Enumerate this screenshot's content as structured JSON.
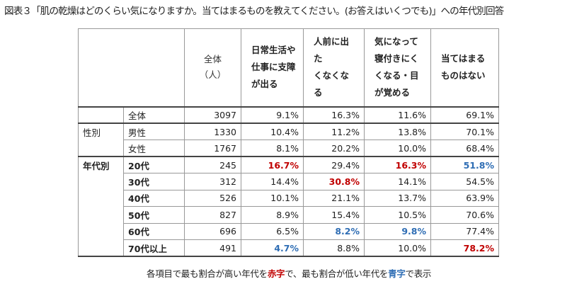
{
  "title": "図表３「肌の乾燥はどのくらい気になりますか。当てはまるものを教えてください。(お答えはいくつでも)」への年代別回答",
  "header": {
    "total_label": "全体\n（人）",
    "columns": [
      "日常生活や\n仕事に支障\nが出る",
      "人前に出た\nくなくなる",
      "気になって\n寝付きにく\nくなる・目\nが覚める",
      "当てはまる\nものはない"
    ]
  },
  "rows": [
    {
      "group": "",
      "label": "全体",
      "bold": false,
      "total": "3097",
      "values": [
        "9.1%",
        "16.3%",
        "11.6%",
        "69.1%"
      ],
      "hl": [
        "",
        "",
        "",
        ""
      ]
    },
    {
      "group": "性別",
      "label": "男性",
      "bold": false,
      "total": "1330",
      "values": [
        "10.4%",
        "11.2%",
        "13.8%",
        "70.1%"
      ],
      "hl": [
        "",
        "",
        "",
        ""
      ]
    },
    {
      "group": "",
      "label": "女性",
      "bold": false,
      "total": "1767",
      "values": [
        "8.1%",
        "20.2%",
        "10.0%",
        "68.4%"
      ],
      "hl": [
        "",
        "",
        "",
        ""
      ]
    },
    {
      "group": "年代別",
      "label": "20代",
      "bold": true,
      "total": "245",
      "values": [
        "16.7%",
        "29.4%",
        "16.3%",
        "51.8%"
      ],
      "hl": [
        "red",
        "",
        "red",
        "blue"
      ]
    },
    {
      "group": "",
      "label": "30代",
      "bold": true,
      "total": "312",
      "values": [
        "14.4%",
        "30.8%",
        "14.1%",
        "54.5%"
      ],
      "hl": [
        "",
        "red",
        "",
        ""
      ]
    },
    {
      "group": "",
      "label": "40代",
      "bold": true,
      "total": "526",
      "values": [
        "10.1%",
        "21.1%",
        "13.7%",
        "63.9%"
      ],
      "hl": [
        "",
        "",
        "",
        ""
      ]
    },
    {
      "group": "",
      "label": "50代",
      "bold": true,
      "total": "827",
      "values": [
        "8.9%",
        "15.4%",
        "10.5%",
        "70.6%"
      ],
      "hl": [
        "",
        "",
        "",
        ""
      ]
    },
    {
      "group": "",
      "label": "60代",
      "bold": true,
      "total": "696",
      "values": [
        "6.5%",
        "8.2%",
        "9.8%",
        "77.4%"
      ],
      "hl": [
        "",
        "blue",
        "blue",
        ""
      ]
    },
    {
      "group": "",
      "label": "70代以上",
      "bold": true,
      "total": "491",
      "values": [
        "4.7%",
        "8.8%",
        "10.0%",
        "78.2%"
      ],
      "hl": [
        "blue",
        "",
        "",
        "red"
      ]
    }
  ],
  "footnote": {
    "part1": "各項目で最も割合が高い年代を",
    "red_word": "赤字",
    "part2": "で、最も割合が低い年代を",
    "blue_word": "青字",
    "part3": "で表示"
  },
  "colors": {
    "red": "#c00000",
    "blue": "#2e6db4"
  }
}
